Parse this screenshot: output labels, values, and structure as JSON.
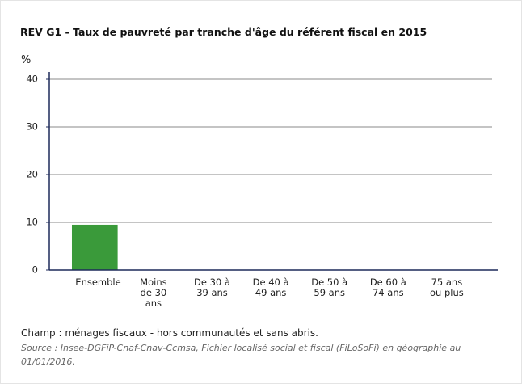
{
  "chart_data": {
    "type": "bar",
    "title": "REV G1 - Taux de pauvreté par tranche d'âge du référent fiscal en 2015",
    "y_label": "%",
    "categories": [
      "Ensemble",
      "Moins de 30 ans",
      "De 30 à 39 ans",
      "De 40 à 49 ans",
      "De 50 à 59 ans",
      "De 60 à 74 ans",
      "75 ans ou plus"
    ],
    "values": [
      9.5,
      null,
      null,
      null,
      null,
      null,
      null
    ],
    "color": "#3a9a3a",
    "ylim": [
      0,
      40
    ],
    "yticks": [
      0,
      10,
      20,
      30,
      40
    ],
    "grid": true,
    "note": "Champ : ménages fiscaux - hors communautés et sans abris.",
    "source": "Source : Insee-DGFiP-Cnaf-Cnav-Ccmsa, Fichier localisé social et fiscal (FiLoSoFi) en géographie au 01/01/2016."
  }
}
